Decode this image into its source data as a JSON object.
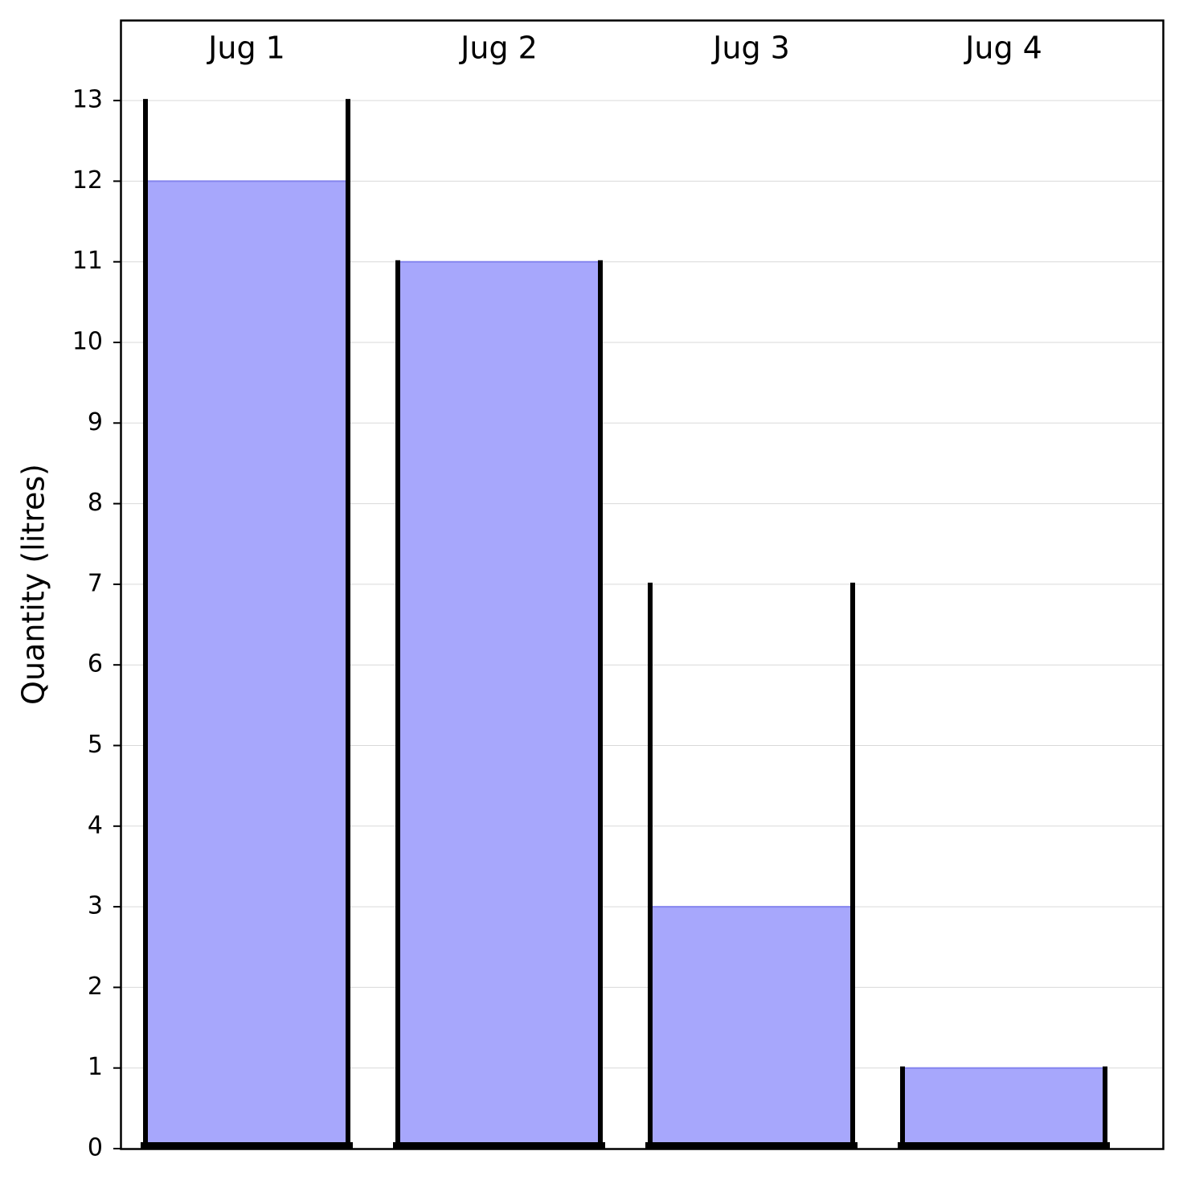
{
  "chart_data": {
    "type": "bar",
    "categories": [
      "Jug 1",
      "Jug 2",
      "Jug 3",
      "Jug 4"
    ],
    "capacity": [
      13,
      11,
      7,
      1
    ],
    "values": [
      12,
      11,
      3,
      1
    ],
    "xlabel": "",
    "ylabel": "Quantity (litres)",
    "ylim": [
      0,
      14
    ],
    "yticks": [
      0,
      1,
      2,
      3,
      4,
      5,
      6,
      7,
      8,
      9,
      10,
      11,
      12,
      13
    ],
    "grid": "horizontal",
    "category_label_position": "top",
    "colors": {
      "fill": "#a7a7fc",
      "fill_edge": "#8585ee",
      "jug_walls": "#000000",
      "grid": "#d9d9d9"
    }
  }
}
